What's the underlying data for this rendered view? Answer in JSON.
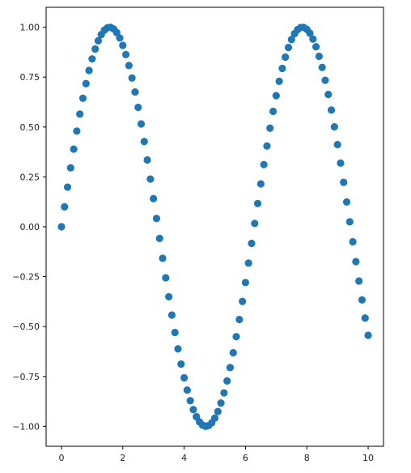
{
  "chart_data": {
    "type": "scatter",
    "title": "",
    "xlabel": "",
    "ylabel": "",
    "xlim": [
      -0.5,
      10.5
    ],
    "ylim": [
      -1.1,
      1.1
    ],
    "grid": false,
    "legend": "none",
    "marker_color": "#1f77b4",
    "x_ticks": [
      0,
      2,
      4,
      6,
      8,
      10
    ],
    "x_tick_labels": [
      "0",
      "2",
      "4",
      "6",
      "8",
      "10"
    ],
    "y_ticks": [
      1.0,
      0.75,
      0.5,
      0.25,
      0.0,
      -0.25,
      -0.5,
      -0.75,
      -1.0
    ],
    "y_tick_labels": [
      "1.00",
      "0.75",
      "0.50",
      "0.25",
      "0.00",
      "−0.25",
      "−0.50",
      "−0.75",
      "−1.00"
    ],
    "series": [
      {
        "points": [
          [
            0.0,
            0.0
          ],
          [
            0.1,
            0.0998
          ],
          [
            0.2,
            0.1987
          ],
          [
            0.3,
            0.2955
          ],
          [
            0.4,
            0.3894
          ],
          [
            0.5,
            0.4794
          ],
          [
            0.6,
            0.5646
          ],
          [
            0.7,
            0.6442
          ],
          [
            0.8,
            0.7174
          ],
          [
            0.9,
            0.7833
          ],
          [
            1.0,
            0.8415
          ],
          [
            1.1,
            0.8912
          ],
          [
            1.2,
            0.932
          ],
          [
            1.3,
            0.9636
          ],
          [
            1.4,
            0.9854
          ],
          [
            1.5,
            0.9975
          ],
          [
            1.6,
            0.9996
          ],
          [
            1.7,
            0.9917
          ],
          [
            1.8,
            0.9738
          ],
          [
            1.9,
            0.9463
          ],
          [
            2.0,
            0.9093
          ],
          [
            2.1,
            0.8632
          ],
          [
            2.2,
            0.8085
          ],
          [
            2.3,
            0.7457
          ],
          [
            2.4,
            0.6755
          ],
          [
            2.5,
            0.5985
          ],
          [
            2.6,
            0.5155
          ],
          [
            2.7,
            0.4274
          ],
          [
            2.8,
            0.335
          ],
          [
            2.9,
            0.2392
          ],
          [
            3.0,
            0.1411
          ],
          [
            3.1,
            0.0416
          ],
          [
            3.2,
            -0.0584
          ],
          [
            3.3,
            -0.1577
          ],
          [
            3.4,
            -0.2555
          ],
          [
            3.5,
            -0.3508
          ],
          [
            3.6,
            -0.4425
          ],
          [
            3.7,
            -0.5298
          ],
          [
            3.8,
            -0.6119
          ],
          [
            3.9,
            -0.6878
          ],
          [
            4.0,
            -0.7568
          ],
          [
            4.1,
            -0.8183
          ],
          [
            4.2,
            -0.8716
          ],
          [
            4.3,
            -0.9162
          ],
          [
            4.4,
            -0.9516
          ],
          [
            4.5,
            -0.9775
          ],
          [
            4.6,
            -0.9937
          ],
          [
            4.7,
            -0.9999
          ],
          [
            4.8,
            -0.9962
          ],
          [
            4.9,
            -0.9825
          ],
          [
            5.0,
            -0.9589
          ],
          [
            5.1,
            -0.9258
          ],
          [
            5.2,
            -0.8835
          ],
          [
            5.3,
            -0.8323
          ],
          [
            5.4,
            -0.7728
          ],
          [
            5.5,
            -0.7055
          ],
          [
            5.6,
            -0.6313
          ],
          [
            5.7,
            -0.5507
          ],
          [
            5.8,
            -0.4646
          ],
          [
            5.9,
            -0.3739
          ],
          [
            6.0,
            -0.2794
          ],
          [
            6.1,
            -0.1822
          ],
          [
            6.2,
            -0.0831
          ],
          [
            6.3,
            0.0168
          ],
          [
            6.4,
            0.1165
          ],
          [
            6.5,
            0.2151
          ],
          [
            6.6,
            0.3115
          ],
          [
            6.7,
            0.4048
          ],
          [
            6.8,
            0.4941
          ],
          [
            6.9,
            0.5784
          ],
          [
            7.0,
            0.657
          ],
          [
            7.1,
            0.729
          ],
          [
            7.2,
            0.7937
          ],
          [
            7.3,
            0.8504
          ],
          [
            7.4,
            0.8987
          ],
          [
            7.5,
            0.938
          ],
          [
            7.6,
            0.9679
          ],
          [
            7.7,
            0.9882
          ],
          [
            7.8,
            0.9985
          ],
          [
            7.9,
            0.9989
          ],
          [
            8.0,
            0.9894
          ],
          [
            8.1,
            0.9699
          ],
          [
            8.2,
            0.9407
          ],
          [
            8.3,
            0.9022
          ],
          [
            8.4,
            0.8546
          ],
          [
            8.5,
            0.7985
          ],
          [
            8.6,
            0.7344
          ],
          [
            8.7,
            0.663
          ],
          [
            8.8,
            0.5849
          ],
          [
            8.9,
            0.501
          ],
          [
            9.0,
            0.4121
          ],
          [
            9.1,
            0.319
          ],
          [
            9.2,
            0.2229
          ],
          [
            9.3,
            0.1245
          ],
          [
            9.4,
            0.0248
          ],
          [
            9.5,
            -0.0752
          ],
          [
            9.6,
            -0.1743
          ],
          [
            9.7,
            -0.2718
          ],
          [
            9.8,
            -0.3665
          ],
          [
            9.9,
            -0.4575
          ],
          [
            10.0,
            -0.544
          ]
        ]
      }
    ]
  }
}
